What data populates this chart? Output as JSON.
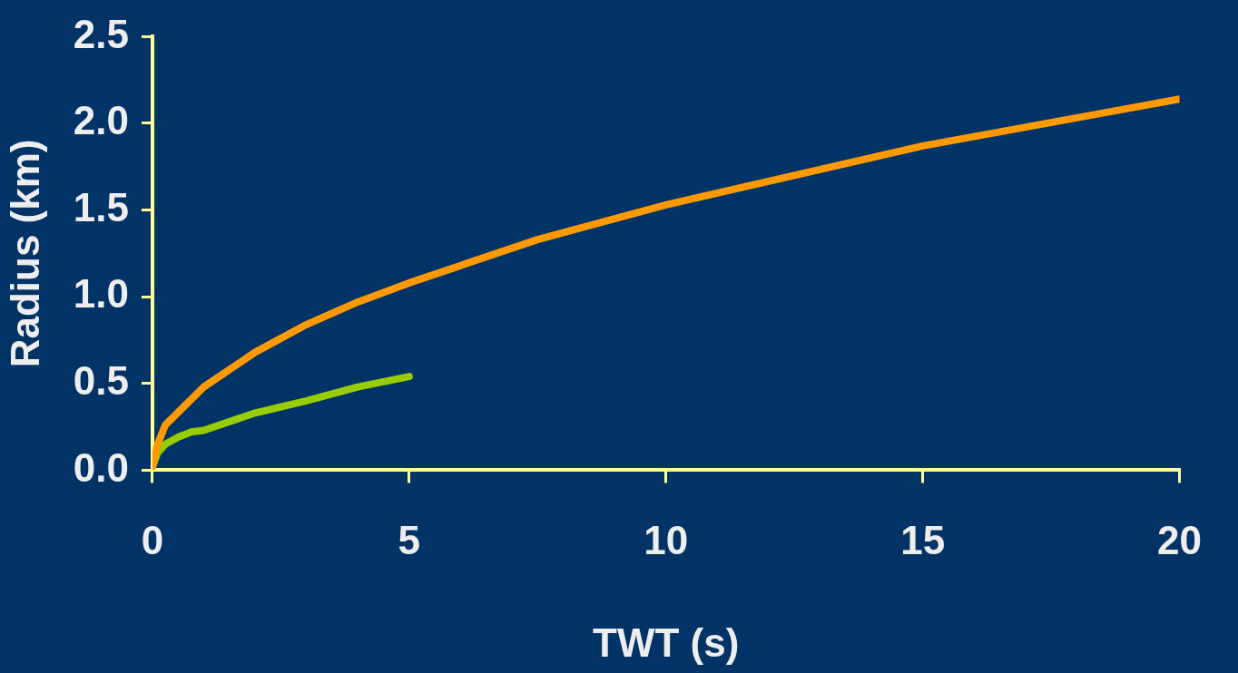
{
  "chart_data": {
    "type": "line",
    "xlabel": "TWT (s)",
    "ylabel": "Radius (km)",
    "xlim": [
      0,
      20
    ],
    "xticks": [
      0,
      5,
      10,
      15,
      20
    ],
    "ylim": [
      0,
      2.5
    ],
    "yticks": [
      {
        "value": 0,
        "label": "0.0"
      },
      {
        "value": 0.5,
        "label": "0.5"
      },
      {
        "value": 1,
        "label": "1.0"
      },
      {
        "value": 1.5,
        "label": "1.5"
      },
      {
        "value": 2,
        "label": "2.0"
      },
      {
        "value": 2.5,
        "label": "2.5"
      }
    ],
    "grid": false,
    "legend": false,
    "marker": "none",
    "line_style": "solid",
    "series": [
      {
        "color": "#ff9900",
        "x": [
          0,
          0.1,
          0.25,
          1,
          2,
          3,
          4,
          5,
          7.5,
          10,
          15,
          20
        ],
        "values": [
          0.02,
          0.15,
          0.26,
          0.48,
          0.68,
          0.84,
          0.97,
          1.08,
          1.33,
          1.53,
          1.87,
          2.14
        ]
      },
      {
        "color": "#99cc00",
        "x": [
          0,
          0.1,
          0.25,
          0.5,
          0.75,
          1,
          2,
          3,
          4,
          5
        ],
        "values": [
          0.02,
          0.1,
          0.15,
          0.19,
          0.22,
          0.23,
          0.33,
          0.4,
          0.48,
          0.54
        ]
      }
    ]
  }
}
